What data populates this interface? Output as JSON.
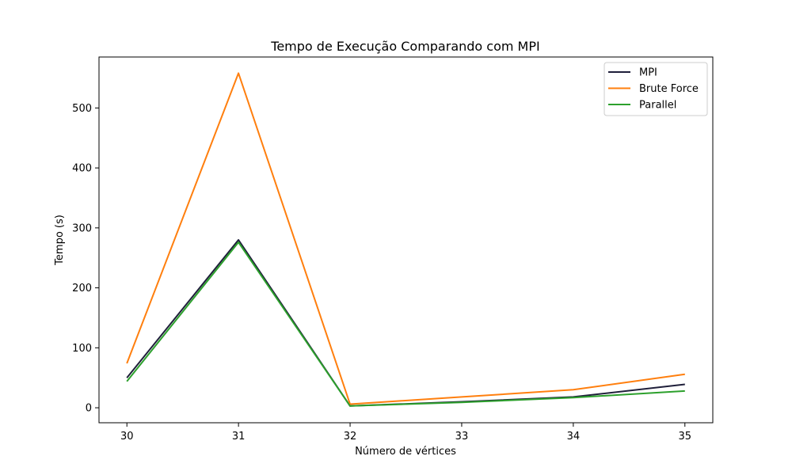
{
  "chart_data": {
    "type": "line",
    "title": "Tempo de Execução Comparando com MPI",
    "xlabel": "Número de vértices",
    "ylabel": "Tempo (s)",
    "x": [
      30,
      31,
      32,
      33,
      34,
      35
    ],
    "xticks": [
      "30",
      "31",
      "32",
      "33",
      "34",
      "35"
    ],
    "yticks": [
      "0",
      "100",
      "200",
      "300",
      "400",
      "500"
    ],
    "xlim": [
      29.75,
      35.25
    ],
    "ylim": [
      -25,
      585
    ],
    "grid": false,
    "legend_position": "top-right",
    "series": [
      {
        "name": "MPI",
        "color": "#1f1f3a",
        "values": [
          50,
          280,
          3,
          10,
          18,
          39
        ]
      },
      {
        "name": "Brute Force",
        "color": "#ff7f0e",
        "values": [
          74,
          558,
          6,
          18,
          30,
          56
        ]
      },
      {
        "name": "Parallel",
        "color": "#2ca02c",
        "values": [
          44,
          276,
          3,
          9,
          17,
          28
        ]
      }
    ]
  }
}
